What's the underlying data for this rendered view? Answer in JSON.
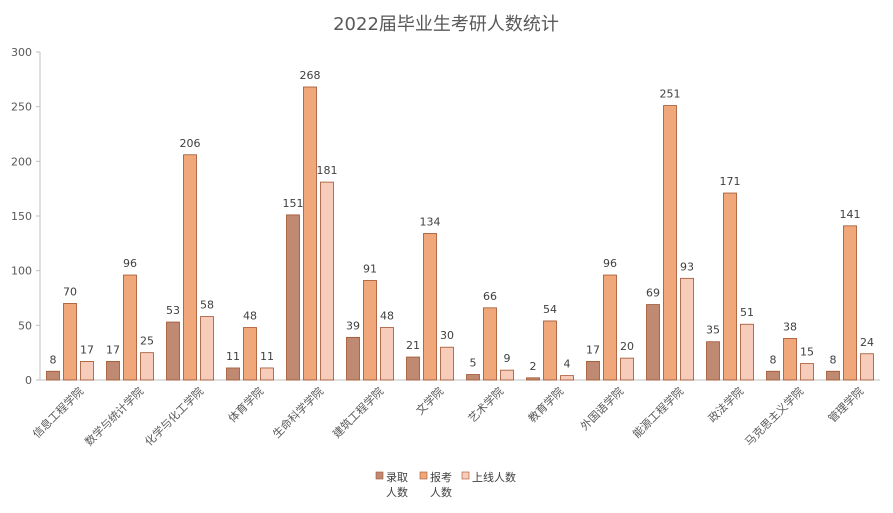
{
  "chart_data": {
    "type": "bar",
    "title": "2022届毕业生考研人数统计",
    "categories": [
      "信息工程学院",
      "数学与统计学院",
      "化学与化工学院",
      "体育学院",
      "生命科学学院",
      "建筑工程学院",
      "文学院",
      "艺术学院",
      "教育学院",
      "外国语学院",
      "能源工程学院",
      "政法学院",
      "马克思主义学院",
      "管理学院"
    ],
    "series": [
      {
        "name": "录取人数",
        "values": [
          8,
          17,
          53,
          11,
          151,
          39,
          21,
          5,
          2,
          17,
          69,
          35,
          8,
          8
        ],
        "color": "#c08a72"
      },
      {
        "name": "报考人数",
        "values": [
          70,
          96,
          206,
          48,
          268,
          91,
          134,
          66,
          54,
          96,
          251,
          171,
          38,
          141
        ],
        "color": "#f0a77a"
      },
      {
        "name": "上线人数",
        "values": [
          17,
          25,
          58,
          11,
          181,
          48,
          30,
          9,
          4,
          20,
          93,
          51,
          15,
          24
        ],
        "color": "#f8ccba"
      }
    ],
    "legend_lines": [
      [
        "录取",
        "人数"
      ],
      [
        "报考",
        "人数"
      ],
      [
        "上线人数"
      ]
    ],
    "ylim": [
      0,
      300
    ],
    "yticks": [
      0,
      50,
      100,
      150,
      200,
      250,
      300
    ],
    "grid": false,
    "legend_position": "bottom"
  }
}
